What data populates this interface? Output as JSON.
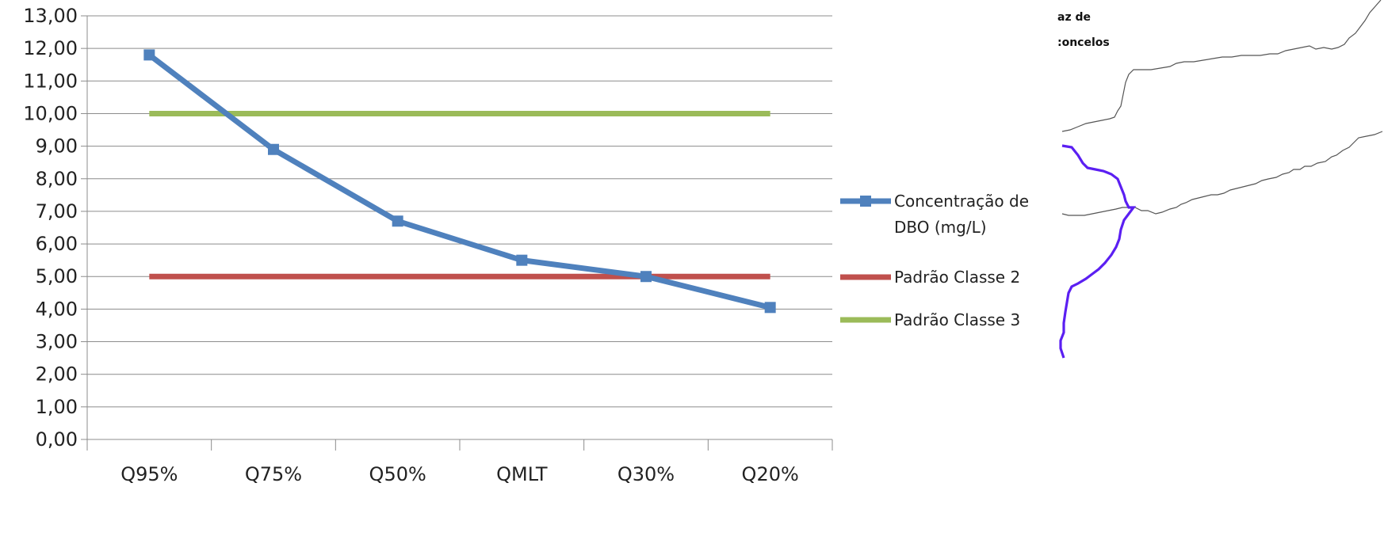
{
  "chart_data": {
    "type": "line",
    "categories": [
      "Q95%",
      "Q75%",
      "Q50%",
      "QMLT",
      "Q30%",
      "Q20%"
    ],
    "series": [
      {
        "name": "Concentração de DBO (mg/L)",
        "name_lines": [
          "Concentração de",
          "DBO (mg/L)"
        ],
        "color": "#4f81bd",
        "marker": "square",
        "values": [
          11.8,
          8.9,
          6.7,
          5.5,
          5.0,
          4.05
        ]
      },
      {
        "name": "Padrão Classe 2",
        "color": "#c0504d",
        "marker": "none",
        "values": [
          5,
          5,
          5,
          5,
          5,
          5
        ]
      },
      {
        "name": "Padrão Classe 3",
        "color": "#9bbb59",
        "marker": "none",
        "values": [
          10,
          10,
          10,
          10,
          10,
          10
        ]
      }
    ],
    "ylim": [
      0,
      13
    ],
    "ytick_step": 1,
    "ytick_labels": [
      "0,00",
      "1,00",
      "2,00",
      "3,00",
      "4,00",
      "5,00",
      "6,00",
      "7,00",
      "8,00",
      "9,00",
      "10,00",
      "11,00",
      "12,00",
      "13,00"
    ],
    "grid": true,
    "legend": "right"
  },
  "map_fragment": {
    "labels": [
      "az de",
      ":oncelos"
    ],
    "river_color": "#5b1ff2",
    "border_color": "#555555"
  }
}
